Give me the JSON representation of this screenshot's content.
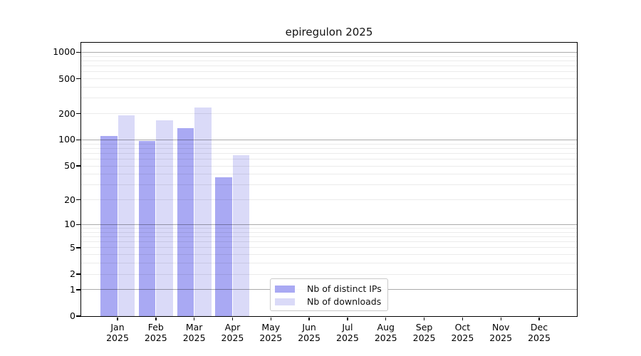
{
  "chart_data": {
    "type": "bar",
    "title": "epiregulon 2025",
    "categories": [
      "Jan",
      "Feb",
      "Mar",
      "Apr",
      "May",
      "Jun",
      "Jul",
      "Aug",
      "Sep",
      "Oct",
      "Nov",
      "Dec"
    ],
    "x_year": "2025",
    "series": [
      {
        "name": "Nb of distinct IPs",
        "color": "#a9a9f3",
        "values": [
          110,
          97,
          136,
          37,
          null,
          null,
          null,
          null,
          null,
          null,
          null,
          null
        ]
      },
      {
        "name": "Nb of downloads",
        "color": "#dadaf8",
        "values": [
          190,
          168,
          235,
          67,
          null,
          null,
          null,
          null,
          null,
          null,
          null,
          null
        ]
      }
    ],
    "y_scale": "log10(1+v)",
    "y_ticks": [
      0,
      1,
      2,
      5,
      10,
      20,
      50,
      100,
      200,
      500,
      1000
    ],
    "y_tick_labels": [
      "0",
      "1",
      "2",
      "5",
      "10",
      "20",
      "50",
      "100",
      "200",
      "500",
      "1000"
    ],
    "y_max": 1285,
    "grid": true,
    "legend_position": "bottom-center-inside"
  }
}
